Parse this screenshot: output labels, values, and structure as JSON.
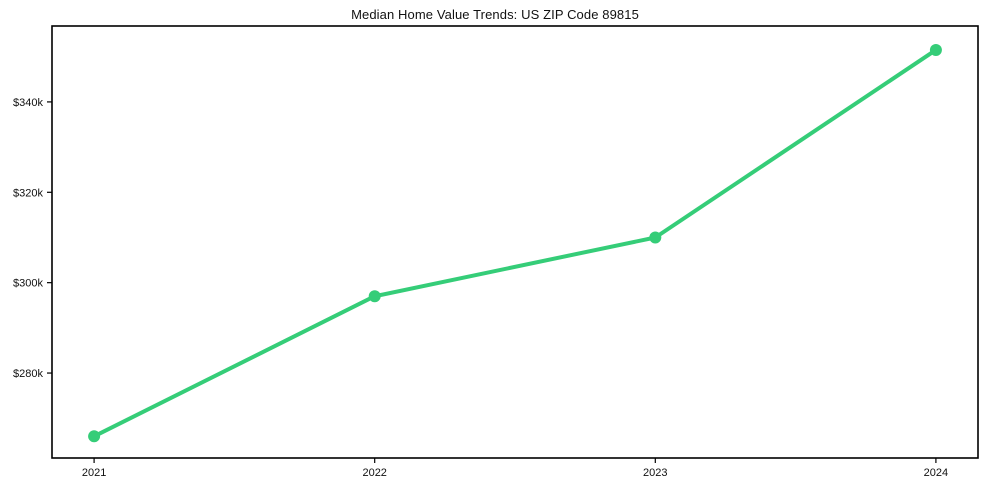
{
  "title": "Median Home Value Trends: US ZIP Code 89815",
  "chart_data": {
    "type": "line",
    "title": "Median Home Value Trends: US ZIP Code 89815",
    "xlabel": "",
    "ylabel": "",
    "categories": [
      "2021",
      "2022",
      "2023",
      "2024"
    ],
    "x": [
      2021,
      2022,
      2023,
      2024
    ],
    "series": [
      {
        "name": "Median Home Value",
        "values": [
          266000,
          297000,
          310000,
          351500
        ]
      }
    ],
    "yticks": [
      {
        "value": 280000,
        "label": "$280k"
      },
      {
        "value": 300000,
        "label": "$300k"
      },
      {
        "value": 320000,
        "label": "$320k"
      },
      {
        "value": 340000,
        "label": "$340k"
      }
    ],
    "xlim": [
      2020.85,
      2024.15
    ],
    "ylim": [
      261200,
      356800
    ],
    "grid": false,
    "legend_position": "none",
    "line_color": "#35cd78",
    "marker": "circle",
    "axis_color": "#000000",
    "background_color": "#ffffff"
  }
}
